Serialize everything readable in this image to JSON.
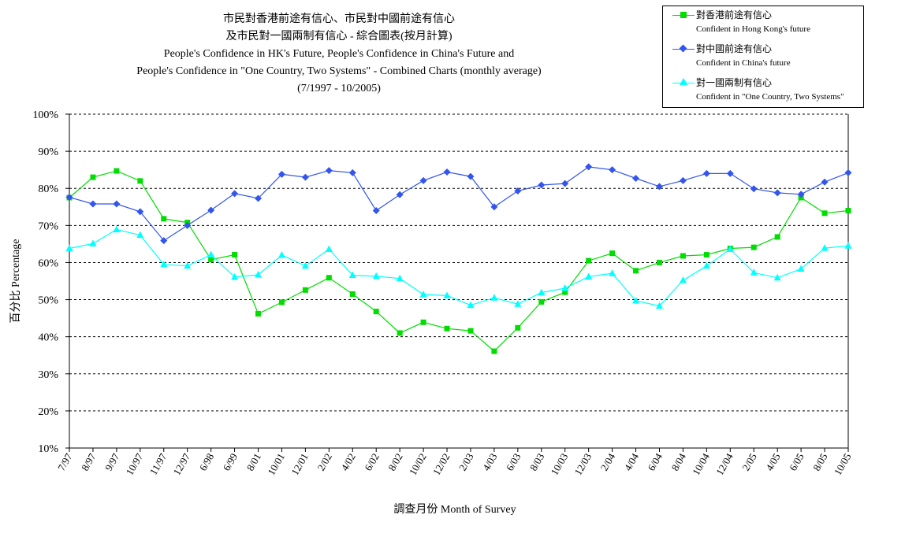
{
  "title": {
    "line1": "市民對香港前途有信心、市民對中國前途有信心",
    "line2": "及市民對一國兩制有信心 - 綜合圖表(按月計算)",
    "line3": "People's Confidence in HK's Future, People's Confidence in China's Future and",
    "line4": "People's Confidence in \"One Country, Two Systems\" - Combined Charts (monthly average)",
    "line5": "(7/1997 - 10/2005)"
  },
  "legend": [
    {
      "zh": "對香港前途有信心",
      "en": "Confident in Hong Kong's future"
    },
    {
      "zh": "對中國前途有信心",
      "en": "Confident in China's future"
    },
    {
      "zh": "對一國兩制有信心",
      "en": "Confident in \"One Country, Two Systems\""
    }
  ],
  "colors": {
    "hk": "#00dd00",
    "china": "#3355ee",
    "octs": "#00ffff",
    "grid": "#000000"
  },
  "chart_data": {
    "type": "line",
    "xlabel": "調查月份 Month of Survey",
    "ylabel": "百分比 Percentage",
    "ylim": [
      10,
      100
    ],
    "yticks": [
      "10%",
      "20%",
      "30%",
      "40%",
      "50%",
      "60%",
      "70%",
      "80%",
      "90%",
      "100%"
    ],
    "grid": "horizontal dashed",
    "legend_position": "top-right",
    "categories": [
      "7/97",
      "8/97",
      "9/97",
      "10/97",
      "11/97",
      "12/97",
      "6/98",
      "6/99",
      "8/01",
      "10/01",
      "12/01",
      "2/02",
      "4/02",
      "6/02",
      "8/02",
      "10/02",
      "12/02",
      "2/03",
      "4/03",
      "6/03",
      "8/03",
      "10/03",
      "12/03",
      "2/04",
      "4/04",
      "6/04",
      "8/04",
      "10/04",
      "12/04",
      "2/05",
      "4/05",
      "6/05",
      "8/05",
      "10/05"
    ],
    "series": [
      {
        "name": "對香港前途有信心 Confident in Hong Kong's future",
        "marker": "square",
        "values": [
          77.5,
          83.0,
          84.7,
          82.0,
          71.8,
          70.8,
          60.8,
          62.1,
          46.2,
          49.3,
          52.6,
          55.9,
          51.5,
          46.8,
          41.0,
          43.9,
          42.2,
          41.6,
          36.1,
          42.4,
          49.4,
          52.0,
          60.5,
          62.5,
          57.8,
          60.0,
          61.8,
          62.1,
          63.8,
          64.1,
          66.9,
          77.5,
          73.3,
          74.0
        ]
      },
      {
        "name": "對中國前途有信心 Confident in China's future",
        "marker": "diamond",
        "values": [
          77.6,
          75.8,
          75.8,
          73.7,
          65.9,
          70.0,
          74.1,
          78.6,
          77.3,
          83.8,
          83.0,
          84.8,
          84.2,
          74.0,
          78.3,
          82.1,
          84.4,
          83.2,
          75.0,
          79.3,
          80.9,
          81.3,
          85.8,
          85.0,
          82.7,
          80.5,
          82.1,
          84.0,
          84.0,
          79.9,
          78.8,
          78.4,
          81.7,
          84.2
        ]
      },
      {
        "name": "對一國兩制有信心 Confident in \"One Country, Two Systems\"",
        "marker": "triangle",
        "values": [
          63.8,
          65.1,
          68.9,
          67.4,
          59.5,
          59.1,
          62.1,
          56.1,
          56.7,
          62.0,
          59.1,
          63.6,
          56.6,
          56.3,
          55.7,
          51.4,
          51.1,
          48.5,
          50.5,
          48.8,
          51.9,
          53.1,
          56.2,
          57.1,
          49.7,
          48.3,
          55.2,
          59.1,
          63.6,
          57.3,
          55.9,
          58.3,
          63.9,
          64.5
        ]
      }
    ]
  }
}
